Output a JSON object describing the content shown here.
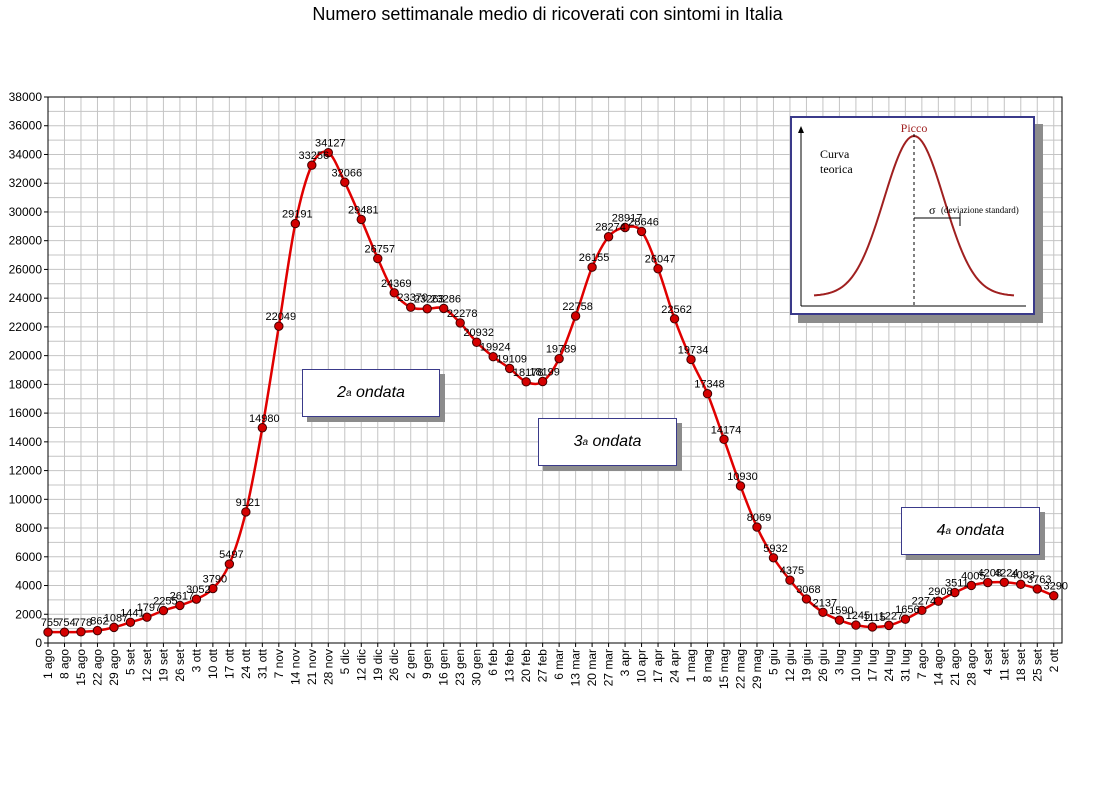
{
  "chart_data": {
    "type": "line",
    "title": "Numero settimanale medio di ricoverati con sintomi in Italia",
    "xlabel": "",
    "ylabel": "",
    "ylim": [
      0,
      38000
    ],
    "ytick_step": 2000,
    "grid": true,
    "series_color": "#e00000",
    "marker_color": "#d40000",
    "categories": [
      "1 ago",
      "8 ago",
      "15 ago",
      "22 ago",
      "29 ago",
      "5 set",
      "12 set",
      "19 set",
      "26 set",
      "3 ott",
      "10 ott",
      "17 ott",
      "24 ott",
      "31 ott",
      "7 nov",
      "14 nov",
      "21 nov",
      "28 nov",
      "5 dic",
      "12 dic",
      "19 dic",
      "26 dic",
      "2 gen",
      "9 gen",
      "16 gen",
      "23 gen",
      "30 gen",
      "6 feb",
      "13 feb",
      "20 feb",
      "27 feb",
      "6 mar",
      "13 mar",
      "20 mar",
      "27 mar",
      "3 apr",
      "10 apr",
      "17 apr",
      "24 apr",
      "1 mag",
      "8 mag",
      "15 mag",
      "22 mag",
      "29 mag",
      "5 giu",
      "12 giu",
      "19 giu",
      "26 giu",
      "3 lug",
      "10 lug",
      "17 lug",
      "24 lug",
      "31 lug",
      "7 ago",
      "14 ago",
      "21 ago",
      "28 ago",
      "4 set",
      "11 set",
      "18 set",
      "25 set",
      "2 ott"
    ],
    "series": [
      {
        "values": [
          755,
          754,
          778,
          862,
          1087,
          1441,
          1797,
          2255,
          2617,
          3052,
          3790,
          5497,
          9121,
          14980,
          22049,
          29191,
          33256,
          34127,
          32066,
          29481,
          26757,
          24369,
          23370,
          23263,
          23286,
          22278,
          20932,
          19924,
          19109,
          18178,
          18199,
          19789,
          22758,
          26155,
          28274,
          28917,
          28646,
          26047,
          22562,
          19734,
          17348,
          14174,
          10930,
          8069,
          5932,
          4375,
          3068,
          2137,
          1590,
          1245,
          1115,
          1227,
          1656,
          2274,
          2908,
          3511,
          4005,
          4208,
          4224,
          4083,
          3763,
          3290
        ],
        "labels": [
          "755",
          "754",
          "778",
          "862",
          "1087",
          "1441",
          "1797",
          "2255",
          "2617",
          "3052",
          "3790",
          "5497",
          "9121",
          "14980",
          "22049",
          "29191",
          "33256",
          "34127",
          "32066",
          "29481",
          "26757",
          "24369",
          "23370",
          "23263",
          "23286",
          "22278",
          "20932",
          "19924",
          "19109",
          "18178",
          "18199",
          "19789",
          "22758",
          "26155",
          "28274",
          "28917",
          "28646",
          "26047",
          "22562",
          "19734",
          "17348",
          "14174",
          "10930",
          "8069",
          "5932",
          "4375",
          "3068",
          "2137",
          "1590",
          "1245",
          "1115",
          "1227",
          "1656",
          "2274",
          "2908",
          "3511",
          "4005",
          "4208",
          "4224",
          "4083",
          "3763",
          "3290"
        ]
      }
    ],
    "annotations": {
      "wave2": {
        "main": "2",
        "sup": "a",
        "rest": " ondata"
      },
      "wave3": {
        "main": "3",
        "sup": "a",
        "rest": " ondata"
      },
      "wave4": {
        "main": "4",
        "sup": "a",
        "rest": " ondata"
      }
    },
    "inset": {
      "peak_label": "Picco",
      "curve_label_line1": "Curva",
      "curve_label_line2": "teorica",
      "sigma_symbol": "σ",
      "sigma_label": "(deviazione standard)",
      "curve_color": "#a02020"
    }
  }
}
